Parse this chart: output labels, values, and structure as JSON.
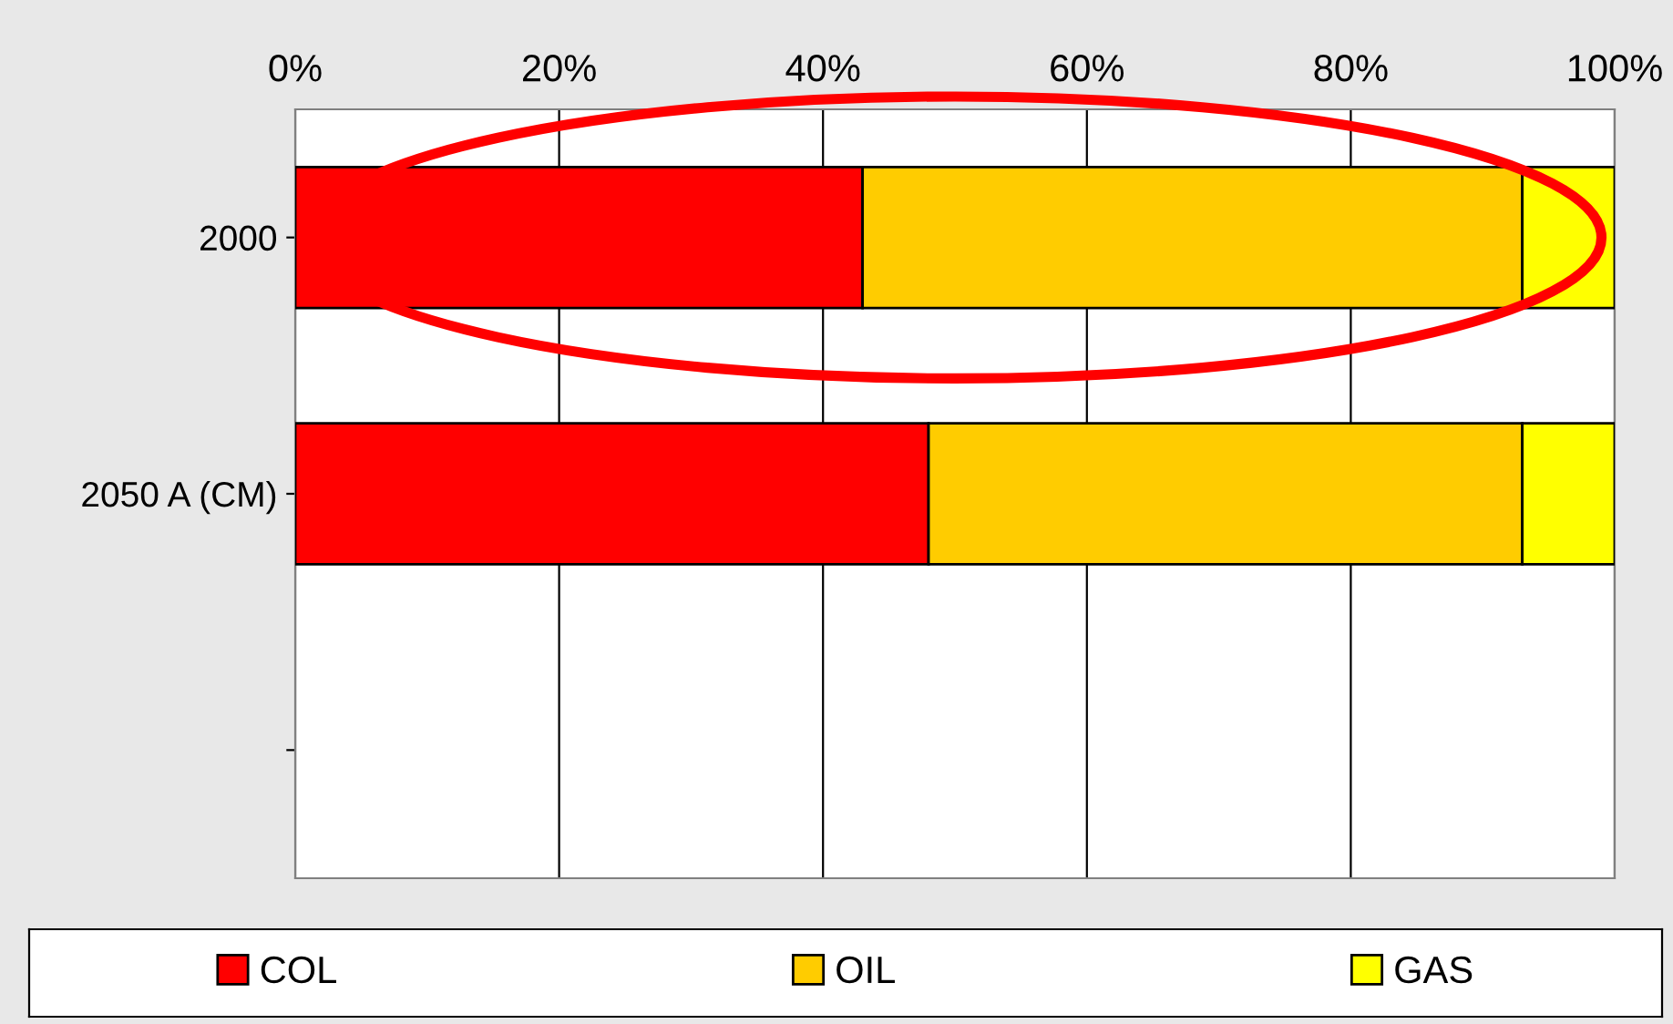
{
  "chart_data": {
    "type": "bar",
    "orientation": "horizontal",
    "stacked": true,
    "categories": [
      "2000",
      "2050 A (CM)",
      null
    ],
    "series": [
      {
        "name": "COL",
        "color": "#ff0000",
        "values": [
          43,
          48,
          null
        ]
      },
      {
        "name": "OIL",
        "color": "#ffcc00",
        "values": [
          50,
          45,
          null
        ]
      },
      {
        "name": "GAS",
        "color": "#ffff00",
        "values": [
          7,
          7,
          null
        ]
      }
    ],
    "xlim": [
      0,
      100
    ],
    "xticks": [
      {
        "value": 0,
        "label": "0%"
      },
      {
        "value": 20,
        "label": "20%"
      },
      {
        "value": 40,
        "label": "40%"
      },
      {
        "value": 60,
        "label": "60%"
      },
      {
        "value": 80,
        "label": "80%"
      },
      {
        "value": 100,
        "label": "100%"
      }
    ],
    "grid": "x",
    "legend": "bottom"
  }
}
